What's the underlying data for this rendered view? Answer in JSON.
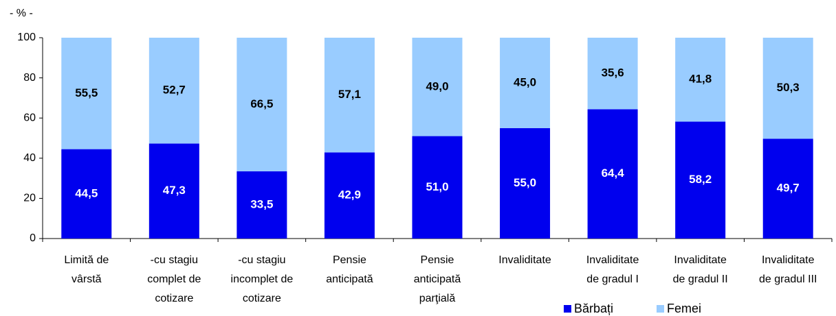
{
  "chart_data": {
    "type": "stacked_bar",
    "axis_label": "- % -",
    "categories": [
      [
        "Limită de",
        "vârstă"
      ],
      [
        "-cu stagiu",
        "complet de",
        "cotizare"
      ],
      [
        "-cu stagiu",
        "incomplet de",
        "cotizare"
      ],
      [
        "Pensie",
        "anticipată"
      ],
      [
        "Pensie",
        "anticipată",
        "parţială"
      ],
      [
        "Invaliditate"
      ],
      [
        "Invaliditate",
        "de gradul I"
      ],
      [
        "Invaliditate",
        "de gradul II"
      ],
      [
        "Invaliditate",
        "de gradul III"
      ]
    ],
    "series": [
      {
        "name": "Bărbați",
        "color": "#0000ee",
        "values": [
          44.5,
          47.3,
          33.5,
          42.9,
          51.0,
          55.0,
          64.4,
          58.2,
          49.7
        ],
        "value_labels": [
          "44,5",
          "47,3",
          "33,5",
          "42,9",
          "51,0",
          "55,0",
          "64,4",
          "58,2",
          "49,7"
        ]
      },
      {
        "name": "Femei",
        "color": "#99ccff",
        "values": [
          55.5,
          52.7,
          66.5,
          57.1,
          49.0,
          45.0,
          35.6,
          41.8,
          50.3
        ],
        "value_labels": [
          "55,5",
          "52,7",
          "66,5",
          "57,1",
          "49,0",
          "45,0",
          "35,6",
          "41,8",
          "50,3"
        ]
      }
    ],
    "ylim": [
      0,
      100
    ],
    "yticks": [
      0,
      20,
      40,
      60,
      80,
      100
    ],
    "legend": "bottom-right"
  }
}
